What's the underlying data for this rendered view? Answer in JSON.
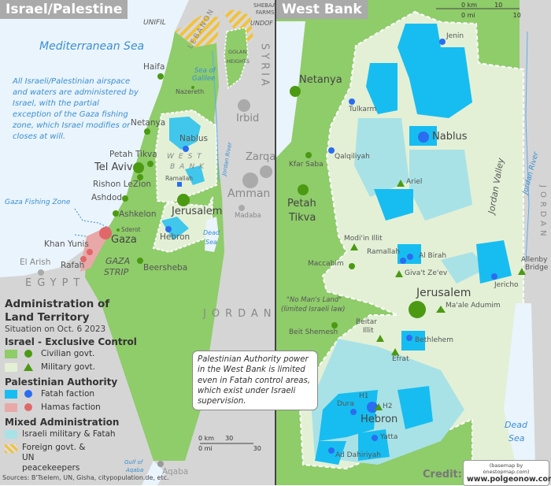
{
  "colors": {
    "sea": "#eaf4fc",
    "land": "#d5d5d5",
    "israel_civil": "#8fcc6a",
    "israel_military": "#e3f0d6",
    "fatah": "#17bdf0",
    "hamas": "#e89a9a",
    "mixed": "#a8e2e6",
    "dot_green": "#4b9a12",
    "dot_blue": "#2b6cf0",
    "dot_red": "#e06868",
    "un": "#f2c23a"
  },
  "left": {
    "title": "Israel/Palestine",
    "labels": {
      "unifil": "UNIFIL",
      "lebanon": "LEBANON",
      "shebaa": "SHEBAA",
      "farms": "FARMS",
      "undof": "UNDOF",
      "golan1": "GOLAN",
      "golan2": "HEIGHTS",
      "syria": "SYRIA",
      "med": "Mediterranean Sea",
      "haifa": "Haifa",
      "galilee1": "Sea of",
      "galilee2": "Galilee",
      "nazereth": "Nazereth",
      "netanya": "Netanya",
      "irbid": "Irbid",
      "nablus": "Nablus",
      "wb1": "WEST",
      "wb2": "BANK",
      "petah": "Petah Tikva",
      "telaviv": "Tel Aviv",
      "rishon": "Rishon LeZion",
      "ramallah": "Ramallah",
      "jordanriver": "Jordan River",
      "zarqa": "Zarqa",
      "amman": "Amman",
      "ashdod": "Ashdod",
      "jerusalem": "Jerusalem",
      "madaba": "Madaba",
      "fishing": "Gaza Fishing Zone",
      "ashkelon": "Ashkelon",
      "sderot": "Sderot",
      "gaza": "Gaza",
      "hebron": "Hebron",
      "deadsea1": "Dead",
      "deadsea2": "Sea",
      "khanyunis": "Khan Yunis",
      "rafah": "Rafah",
      "elarish": "El Arish",
      "gazastrip1": "GAZA",
      "gazastrip2": "STRIP",
      "beersheba": "Beersheba",
      "egypt": "EGYPT",
      "jordan": "JORDAN",
      "gulf1": "Gulf of",
      "gulf2": "Aqaba",
      "aqaba": "Aqaba"
    },
    "note": "All Israeli/Palestinian airspace and waters are administered by Israel, with the partial exception of the Gaza fishing zone, which Israel modifies or closes at will.",
    "scale": {
      "km": "0 km",
      "km_v": "30",
      "mi": "0 mi",
      "mi_v": "30"
    },
    "callout": "Palestinian Authority power in the West Bank is limited even in Fatah control areas, which exist under Israeli supervision.",
    "sources": "Sources: B'Tselem, UN, Gisha, citypopulation.de, etc."
  },
  "legend": {
    "title": "Administration of Land Territory",
    "situation": "Situation on Oct. 6 2023",
    "groups": [
      {
        "heading": "Israel - Exclusive Control",
        "items": [
          {
            "label": "Civilian govt.",
            "swatch": "#8fcc6a",
            "marker": "circle",
            "marker_color": "#4b9a12"
          },
          {
            "label": "Military govt.",
            "swatch": "#e3f0d6",
            "marker": "triangle",
            "marker_color": "#4b9a12"
          }
        ]
      },
      {
        "heading": "Palestinian Authority",
        "items": [
          {
            "label": "Fatah faction",
            "swatch": "#17bdf0",
            "marker": "circle",
            "marker_color": "#2b6cf0"
          },
          {
            "label": "Hamas faction",
            "swatch": "#e8a8a8",
            "marker": "circle",
            "marker_color": "#e06868"
          }
        ]
      },
      {
        "heading": "Mixed Administration",
        "items": [
          {
            "label": "Israeli military & Fatah",
            "swatch": "#a8e2e6"
          },
          {
            "label": "Foreign govt. & UN peacekeepers",
            "swatch": "stripes-yellow"
          }
        ]
      }
    ]
  },
  "right": {
    "title": "West Bank",
    "scale": {
      "km": "0 km",
      "km_v": "10",
      "mi": "0 mi",
      "mi_v": "10"
    },
    "labels": {
      "jenin": "Jenin",
      "netanya": "Netanya",
      "tulkarm": "Tulkarm",
      "nablus": "Nablus",
      "qalqiliyah": "Qalqiliyah",
      "kfarsaba": "Kfar Saba",
      "ariel": "Ariel",
      "petah1": "Petah",
      "petah2": "Tikva",
      "jvalley": "Jordan Valley",
      "jriver": "Jordan River",
      "jordan": "JORDAN",
      "modiin": "Modi'in Illit",
      "ramallah": "Ramallah",
      "albirah": "Al Birah",
      "maccabim": "Maccabim",
      "givat": "Giva't Ze'ev",
      "allenby1": "Allenby",
      "allenby2": "Bridge",
      "jericho": "Jericho",
      "jerusalem": "Jerusalem",
      "nomans1": "\"No Man's Land\"",
      "nomans2": "(limited Israeli law)",
      "maale": "Ma'ale Adumim",
      "beitshemesh": "Beit Shemesh",
      "beitar1": "Beitar",
      "beitar2": "Illit",
      "bethlehem": "Bethlehem",
      "efrat": "Efrat",
      "h1": "H1",
      "h2": "H2",
      "dura": "Dura",
      "hebron": "Hebron",
      "yatta": "Yatta",
      "dahiriyah": "Ad Dahiriyah",
      "deadsea1": "Dead",
      "deadsea2": "Sea"
    },
    "credit": {
      "label": "Credit:",
      "basemap": "(basemap by onestopmap.com)",
      "site": "www.polgeonow.com"
    }
  }
}
